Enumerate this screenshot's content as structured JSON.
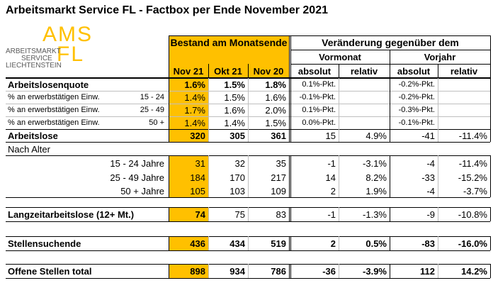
{
  "title": "Arbeitsmarkt Service FL - Factbox per Ende November 2021",
  "logo": {
    "big_top": "AMS",
    "big_bottom": "FL",
    "line1": "ARBEITSMARKT",
    "line2": "SERVICE",
    "line3": "LIECHTENSTEIN"
  },
  "header": {
    "bestand": "Bestand am Monatsende",
    "veraenderung": "Veränderung gegenüber dem",
    "vormonat": "Vormonat",
    "vorjahr": "Vorjahr",
    "cols": [
      "Nov 21",
      "Okt 21",
      "Nov 20",
      "absolut",
      "relativ",
      "absolut",
      "relativ"
    ]
  },
  "rows": {
    "quote": {
      "label": "Arbeitslosenquote",
      "v": [
        "1.6%",
        "1.5%",
        "1.8%",
        "0.1%-Pkt.",
        "",
        "-0.2%-Pkt.",
        ""
      ]
    },
    "q1": {
      "label": "% an erwerbstätigen Einw.",
      "age": "15 - 24",
      "v": [
        "1.4%",
        "1.5%",
        "1.6%",
        "-0.1%-Pkt.",
        "",
        "-0.2%-Pkt.",
        ""
      ]
    },
    "q2": {
      "label": "% an erwerbstätigen Einw.",
      "age": "25 - 49",
      "v": [
        "1.7%",
        "1.6%",
        "2.0%",
        "0.1%-Pkt.",
        "",
        "-0.3%-Pkt.",
        ""
      ]
    },
    "q3": {
      "label": "% an erwerbstätigen Einw.",
      "age": "50 +",
      "v": [
        "1.4%",
        "1.4%",
        "1.5%",
        "0.0%-Pkt.",
        "",
        "-0.1%-Pkt.",
        ""
      ]
    },
    "arbeitslose": {
      "label": "Arbeitslose",
      "v": [
        "320",
        "305",
        "361",
        "15",
        "4.9%",
        "-41",
        "-11.4%"
      ]
    },
    "nach_alter": {
      "label": "Nach Alter"
    },
    "a1": {
      "label": "15 - 24 Jahre",
      "v": [
        "31",
        "32",
        "35",
        "-1",
        "-3.1%",
        "-4",
        "-11.4%"
      ]
    },
    "a2": {
      "label": "25 - 49 Jahre",
      "v": [
        "184",
        "170",
        "217",
        "14",
        "8.2%",
        "-33",
        "-15.2%"
      ]
    },
    "a3": {
      "label": "50 + Jahre",
      "v": [
        "105",
        "103",
        "109",
        "2",
        "1.9%",
        "-4",
        "-3.7%"
      ]
    },
    "langzeit": {
      "label": "Langzeitarbeitslose (12+ Mt.)",
      "v": [
        "74",
        "75",
        "83",
        "-1",
        "-1.3%",
        "-9",
        "-10.8%"
      ]
    },
    "stellensuchende": {
      "label": "Stellensuchende",
      "v": [
        "436",
        "434",
        "519",
        "2",
        "0.5%",
        "-83",
        "-16.0%"
      ]
    },
    "offene": {
      "label": "Offene Stellen total",
      "v": [
        "898",
        "934",
        "786",
        "-36",
        "-3.9%",
        "112",
        "14.2%"
      ]
    }
  }
}
